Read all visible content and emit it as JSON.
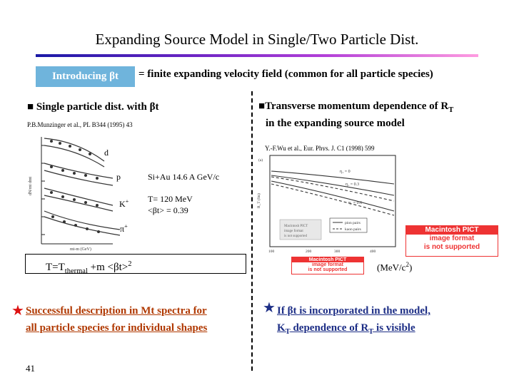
{
  "slide": {
    "title": "Expanding Source Model in Single/Two Particle Dist.",
    "intro_box": "Introducing βt",
    "intro_rest": "= finite expanding velocity field (common for all particle species)",
    "page_number": "41"
  },
  "left_panel": {
    "bullet": "■",
    "heading": "Single particle dist. with βt",
    "reference": "P.B.Munzinger et al., PL B344 (1995) 43",
    "plot_labels": {
      "d": "d",
      "p": "p",
      "k_base": "K",
      "k_sup": "+",
      "pi_base": "π",
      "pi_sup": "+"
    },
    "annotation_line1": "Si+Au 14.6 A GeV/c",
    "annotation_line2": "T= 120 MeV",
    "annotation_line3": "<βt> = 0.39",
    "formula": {
      "part1": "T=T",
      "sub": "thermal",
      "part2": " +m <βt>",
      "sup": "2"
    },
    "bottom_star": "★",
    "bottom_line1": "Successful  description in Mt spectra for",
    "bottom_line2": "all particle species for individual shapes "
  },
  "right_panel": {
    "bullet": "■",
    "heading_part1": "Transverse momentum dependence of R",
    "heading_sub": "T",
    "heading_line2": "in the expanding source model",
    "reference": "Y.-F.Wu et al., Eur. Phys. J. C1 (1998) 599",
    "unit_label": "(MeV/c",
    "unit_sup": "2",
    "unit_close": ")",
    "pict_large_line1": "Macintosh PICT",
    "pict_large_line2": "image format",
    "pict_large_line3": "is not supported",
    "pict_small_line1": "Macintosh PICT",
    "pict_small_line2": "image format",
    "pict_small_line3": "is not supported",
    "bottom_star": "★",
    "bottom_line1": "If  βt  is incorporated in the model,",
    "bottom_line2_a": "K",
    "bottom_line2_sub": "T",
    "bottom_line2_b": " dependence of R",
    "bottom_line2_sub2": "T",
    "bottom_line2_c": " is visible"
  },
  "colors": {
    "intro_box_bg": "#6fb4dc",
    "left_bottom_text": "#b03800",
    "right_bottom_text": "#1d2e86",
    "star": "#dd1111",
    "pict_red": "#ee3333"
  }
}
